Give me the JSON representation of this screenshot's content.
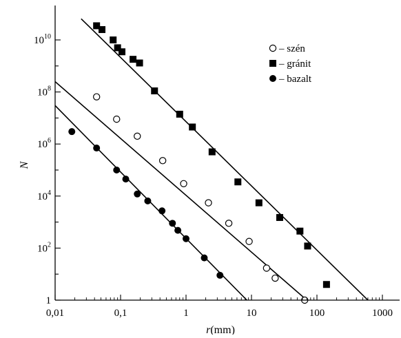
{
  "chart_data": {
    "type": "scatter",
    "xscale": "log",
    "yscale": "log",
    "xlabel_var": "r",
    "xlabel_unit": "(mm)",
    "ylabel": "N",
    "xlim": [
      0.01,
      2000
    ],
    "ylim": [
      1,
      30000000000
    ],
    "xticks": [
      {
        "value": 0.01,
        "label": "0,01"
      },
      {
        "value": 0.1,
        "label": "0,1"
      },
      {
        "value": 1,
        "label": "1"
      },
      {
        "value": 10,
        "label": "10"
      },
      {
        "value": 100,
        "label": "100"
      },
      {
        "value": 1000,
        "label": "1000"
      }
    ],
    "yticks": [
      {
        "value": 1,
        "base": "1",
        "exp": ""
      },
      {
        "value": 100,
        "base": "10",
        "exp": "2"
      },
      {
        "value": 10000,
        "base": "10",
        "exp": "4"
      },
      {
        "value": 1000000,
        "base": "10",
        "exp": "6"
      },
      {
        "value": 100000000,
        "base": "10",
        "exp": "8"
      },
      {
        "value": 10000000000,
        "base": "10",
        "exp": "10"
      }
    ],
    "grid": false,
    "legend_position": "top-right",
    "series": [
      {
        "name": "– szén",
        "marker": "open-circle",
        "color": "#000000",
        "points": [
          [
            0.043,
            65000000
          ],
          [
            0.087,
            9000000
          ],
          [
            0.18,
            2000000
          ],
          [
            0.44,
            230000
          ],
          [
            0.92,
            30000
          ],
          [
            2.2,
            5500
          ],
          [
            4.5,
            900
          ],
          [
            9.2,
            180
          ],
          [
            17,
            17
          ],
          [
            23,
            7
          ],
          [
            65,
            1
          ]
        ],
        "fit": {
          "x": [
            0.01,
            70
          ],
          "y": [
            250000000,
            1
          ]
        }
      },
      {
        "name": "– gránit",
        "marker": "filled-square",
        "color": "#000000",
        "points": [
          [
            0.043,
            35000000000
          ],
          [
            0.052,
            25000000000
          ],
          [
            0.077,
            10000000000
          ],
          [
            0.09,
            5000000000
          ],
          [
            0.105,
            3500000000
          ],
          [
            0.155,
            1800000000
          ],
          [
            0.195,
            1300000000
          ],
          [
            0.33,
            110000000
          ],
          [
            0.8,
            14000000
          ],
          [
            1.25,
            4500000
          ],
          [
            2.5,
            500000
          ],
          [
            6.2,
            35000
          ],
          [
            13,
            5500
          ],
          [
            27,
            1500
          ],
          [
            55,
            450
          ],
          [
            72,
            120
          ],
          [
            140,
            4
          ]
        ],
        "fit": {
          "x": [
            0.025,
            600
          ],
          "y": [
            65000000000,
            1
          ]
        }
      },
      {
        "name": "– bazalt",
        "marker": "filled-circle",
        "color": "#000000",
        "points": [
          [
            0.018,
            3000000
          ],
          [
            0.043,
            700000
          ],
          [
            0.087,
            100000
          ],
          [
            0.12,
            45000
          ],
          [
            0.18,
            12000
          ],
          [
            0.26,
            6500
          ],
          [
            0.43,
            2700
          ],
          [
            0.62,
            900
          ],
          [
            0.75,
            480
          ],
          [
            1.0,
            230
          ],
          [
            1.9,
            42
          ],
          [
            3.3,
            9
          ]
        ],
        "fit": {
          "x": [
            0.01,
            8.5
          ],
          "y": [
            30000000,
            1
          ]
        }
      }
    ]
  }
}
